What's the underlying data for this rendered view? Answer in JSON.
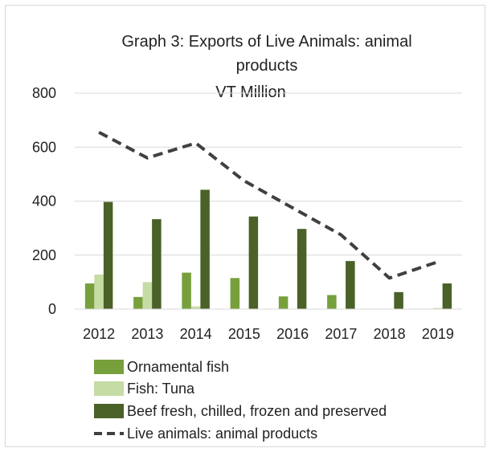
{
  "chart_data": {
    "type": "bar",
    "title_lines": [
      "Graph 3:  Exports of Live Animals:  animal",
      "products",
      "VT Million"
    ],
    "categories": [
      "2012",
      "2013",
      "2014",
      "2015",
      "2016",
      "2017",
      "2018",
      "2019"
    ],
    "ylim": [
      0,
      800
    ],
    "yticks": [
      "0",
      "200",
      "400",
      "600",
      "800"
    ],
    "grid": true,
    "legend_position": "bottom",
    "series": [
      {
        "name": "Ornamental fish",
        "kind": "bar",
        "color": "#77a03c",
        "values": [
          95,
          45,
          135,
          115,
          47,
          52,
          0,
          0
        ]
      },
      {
        "name": "Fish: Tuna",
        "kind": "bar",
        "color": "#c5dca5",
        "values": [
          128,
          100,
          10,
          0,
          0,
          0,
          0,
          4
        ]
      },
      {
        "name": "Beef fresh, chilled, frozen and preserved",
        "kind": "bar",
        "color": "#4a6127",
        "values": [
          397,
          333,
          442,
          343,
          297,
          178,
          63,
          95
        ]
      },
      {
        "name": "Live animals: animal products",
        "kind": "line",
        "color": "#404040",
        "dash": true,
        "values": [
          655,
          560,
          615,
          475,
          375,
          275,
          115,
          175
        ]
      }
    ]
  }
}
